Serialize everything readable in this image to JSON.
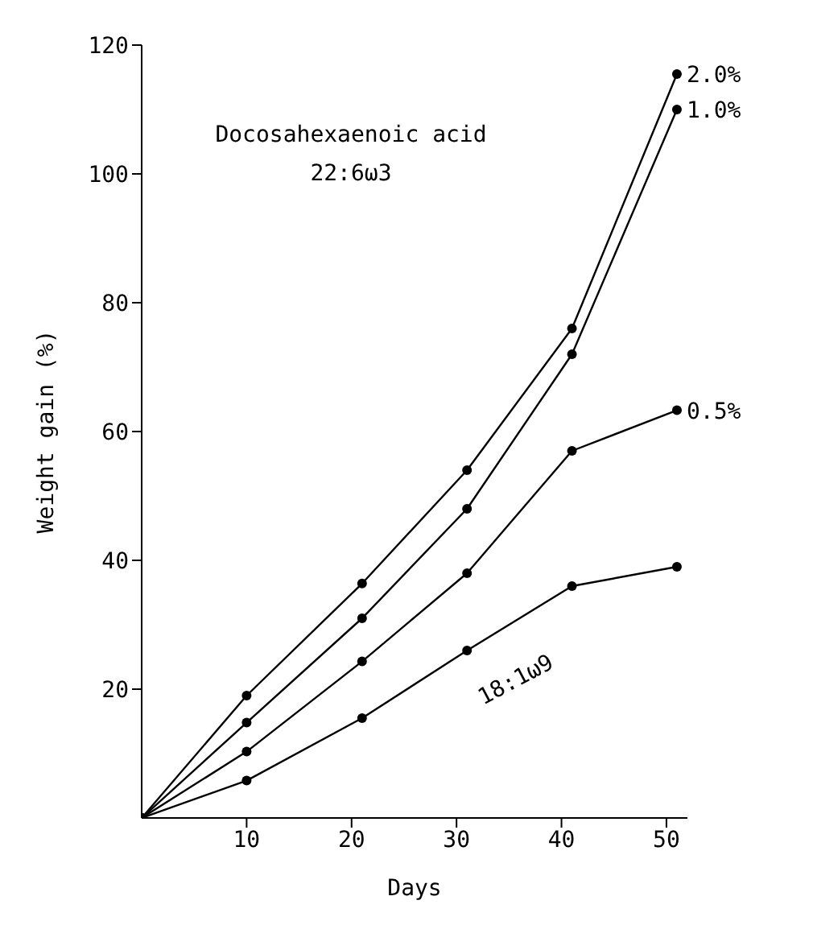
{
  "chart_data": {
    "type": "line",
    "xlabel": "Days",
    "ylabel": "Weight gain (%)",
    "annotations": [
      "Docosahexaenoic acid",
      "22:6ω3"
    ],
    "xlim": [
      0,
      52
    ],
    "xticks": [
      10,
      20,
      30,
      40,
      50
    ],
    "ylim": [
      0,
      120
    ],
    "yticks": [
      20,
      40,
      60,
      80,
      100,
      120
    ],
    "marker": "circle",
    "line_style": "solid",
    "series": [
      {
        "name": "2.0%",
        "color": "#000000",
        "x": [
          0,
          10,
          21,
          31,
          41,
          51
        ],
        "values": [
          0,
          19,
          36.4,
          54,
          76,
          115.5
        ]
      },
      {
        "name": "1.0%",
        "color": "#000000",
        "x": [
          0,
          10,
          21,
          31,
          41,
          51
        ],
        "values": [
          0,
          14.8,
          31,
          48,
          72,
          110
        ]
      },
      {
        "name": "0.5%",
        "color": "#000000",
        "x": [
          0,
          10,
          21,
          31,
          41,
          51
        ],
        "values": [
          0,
          10.3,
          24.3,
          38,
          57,
          63.3
        ]
      },
      {
        "name": "18:1ω9",
        "color": "#000000",
        "x": [
          0,
          10,
          21,
          31,
          41,
          51
        ],
        "values": [
          0,
          5.8,
          15.5,
          26,
          36,
          39
        ]
      }
    ]
  }
}
